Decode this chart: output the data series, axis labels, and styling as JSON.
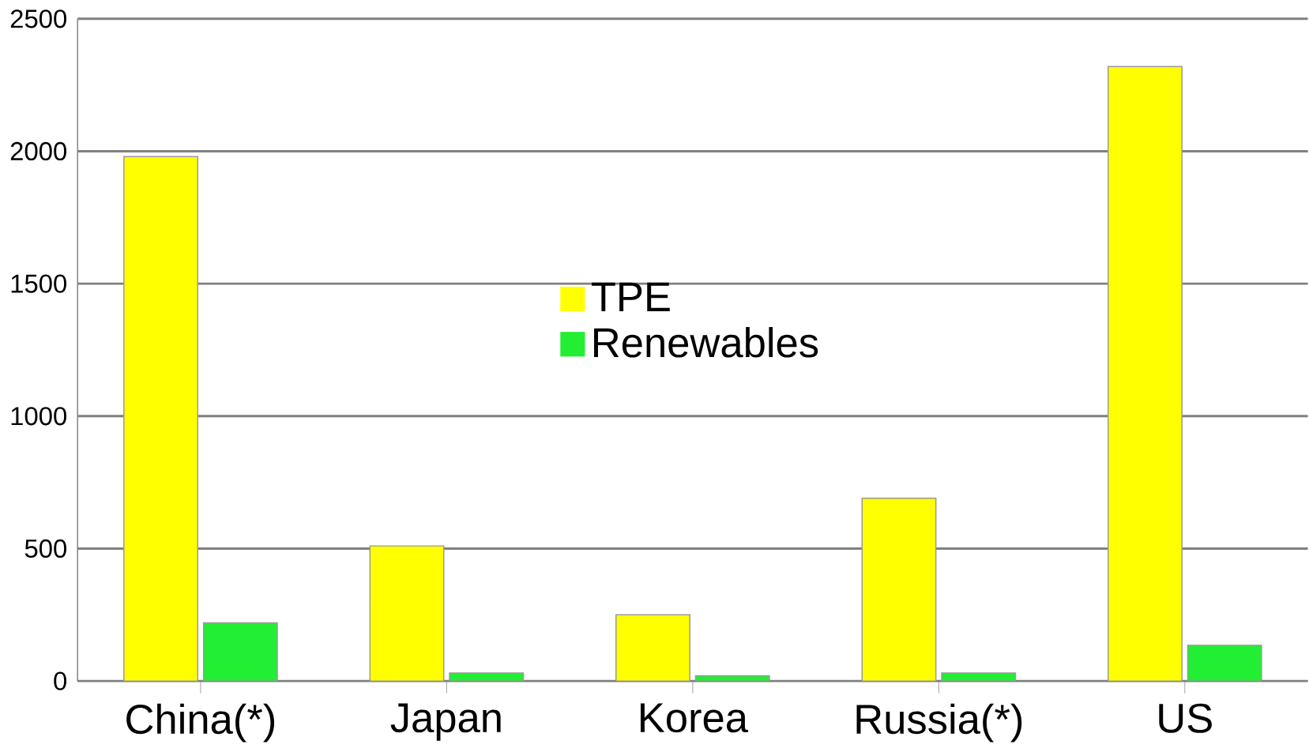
{
  "chart_data": {
    "type": "bar",
    "categories": [
      "China(*)",
      "Japan",
      "Korea",
      "Russia(*)",
      "US"
    ],
    "series": [
      {
        "name": "TPE",
        "color": "#ffff00",
        "values": [
          1980,
          510,
          250,
          690,
          2320
        ]
      },
      {
        "name": "Renewables",
        "color": "#22ee33",
        "values": [
          220,
          30,
          20,
          30,
          135
        ]
      }
    ],
    "ylim": [
      0,
      2500
    ],
    "yticks": [
      0,
      500,
      1000,
      1500,
      2000,
      2500
    ],
    "grid": "y",
    "legend": "top"
  }
}
